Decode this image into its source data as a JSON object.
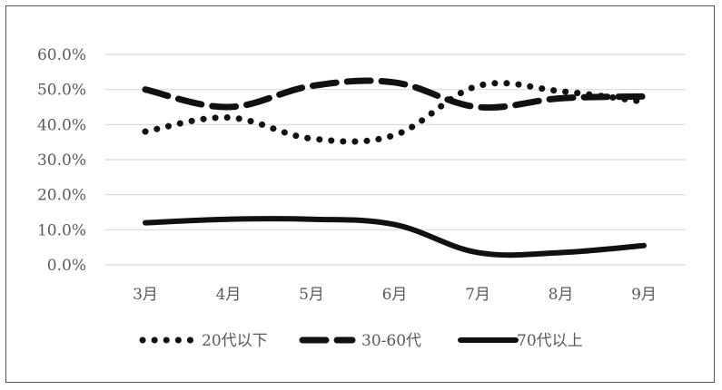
{
  "chart_data": {
    "type": "line",
    "categories": [
      "3月",
      "4月",
      "5月",
      "6月",
      "7月",
      "8月",
      "9月"
    ],
    "y_tick_labels": [
      "0.0%",
      "10.0%",
      "20.0%",
      "30.0%",
      "40.0%",
      "50.0%",
      "60.0%"
    ],
    "ylim": [
      0,
      60
    ],
    "grid": true,
    "legend_position": "bottom",
    "series": [
      {
        "name": "20代以下",
        "style": "dotted",
        "values": [
          38,
          42,
          36,
          37,
          51,
          49.5,
          46.5
        ]
      },
      {
        "name": "30-60代",
        "style": "dashed",
        "values": [
          50,
          45,
          51,
          52,
          45,
          47.5,
          48
        ]
      },
      {
        "name": "70代以上",
        "style": "solid",
        "values": [
          12,
          13,
          13,
          11.5,
          3.5,
          3.5,
          5.5
        ]
      }
    ],
    "colors": {
      "line": "#111111",
      "grid": "#d9d9d9",
      "text": "#595959"
    }
  }
}
